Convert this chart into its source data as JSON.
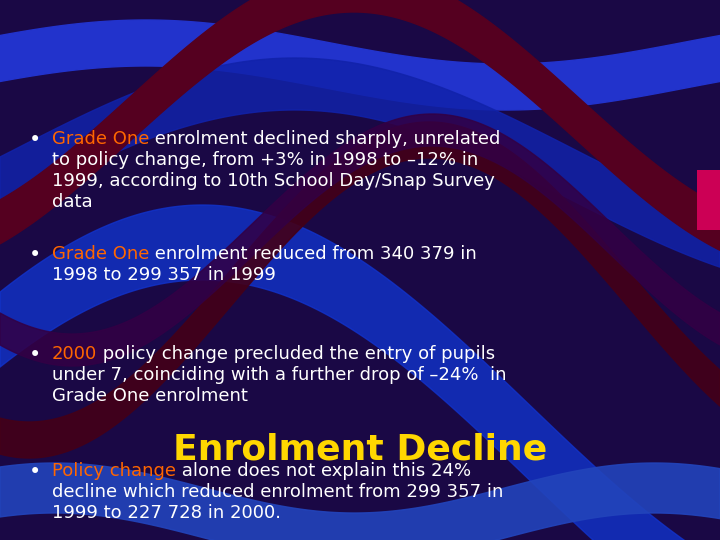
{
  "title": "Enrolment Decline",
  "title_color": "#FFD700",
  "title_fontsize": 26,
  "bg_color": "#1a0845",
  "text_color": "#FFFFFF",
  "highlight_color": "#FF6600",
  "figsize": [
    7.2,
    5.4
  ],
  "dpi": 100,
  "accent_color": "#CC0055",
  "bullet_entries": [
    {
      "highlight": "Grade One",
      "line1_rest": " enrolment declined sharply, unrelated",
      "lines_rest": [
        "to policy change, from +3% in 1998 to –12% in",
        "1999, according to 10th School Day/Snap Survey",
        "data"
      ]
    },
    {
      "highlight": "Grade One",
      "line1_rest": " enrolment reduced from 340 379 in",
      "lines_rest": [
        "1998 to 299 357 in 1999"
      ]
    },
    {
      "highlight": "2000",
      "line1_rest": " policy change precluded the entry of pupils",
      "lines_rest": [
        "under 7, coinciding with a further drop of –24%  in",
        "Grade One enrolment"
      ]
    },
    {
      "highlight": "Policy change",
      "line1_rest": " alone does not explain this 24%",
      "lines_rest": [
        "decline which reduced enrolment from 299 357 in",
        "1999 to 227 728 in 2000."
      ]
    }
  ]
}
